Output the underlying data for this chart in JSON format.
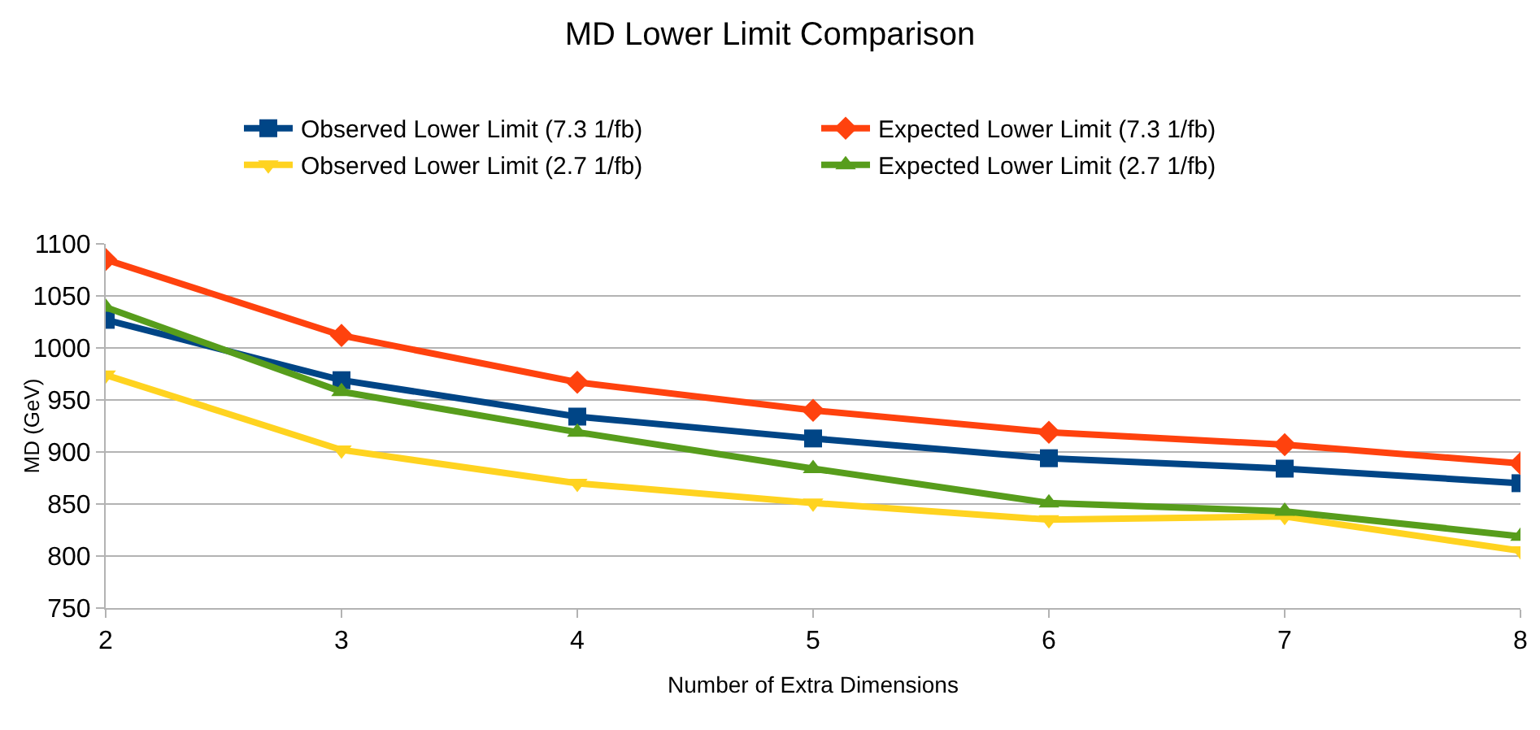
{
  "chart_data": {
    "type": "line",
    "title": "MD Lower Limit Comparison",
    "xlabel": "Number of Extra Dimensions",
    "ylabel": "MD (GeV)",
    "x": [
      2,
      3,
      4,
      5,
      6,
      7,
      8
    ],
    "xlim": [
      2,
      8
    ],
    "xticks": [
      2,
      3,
      4,
      5,
      6,
      7,
      8
    ],
    "ylim": [
      750,
      1100
    ],
    "yticks": [
      750,
      800,
      850,
      900,
      950,
      1000,
      1050,
      1100
    ],
    "grid": "y",
    "legend": "top",
    "series": [
      {
        "name": "Observed Lower Limit (7.3 1/fb)",
        "color": "#004586",
        "marker": "square",
        "values": [
          1027,
          969,
          934,
          913,
          894,
          884,
          870
        ]
      },
      {
        "name": "Expected Lower Limit (7.3 1/fb)",
        "color": "#ff420e",
        "marker": "diamond",
        "values": [
          1085,
          1012,
          967,
          940,
          919,
          907,
          889
        ]
      },
      {
        "name": "Observed Lower Limit (2.7 1/fb)",
        "color": "#ffd320",
        "marker": "triangle-down",
        "values": [
          974,
          902,
          870,
          851,
          835,
          838,
          805
        ]
      },
      {
        "name": "Expected Lower Limit (2.7 1/fb)",
        "color": "#579d1c",
        "marker": "triangle",
        "values": [
          1039,
          958,
          919,
          884,
          851,
          843,
          819
        ]
      }
    ]
  }
}
